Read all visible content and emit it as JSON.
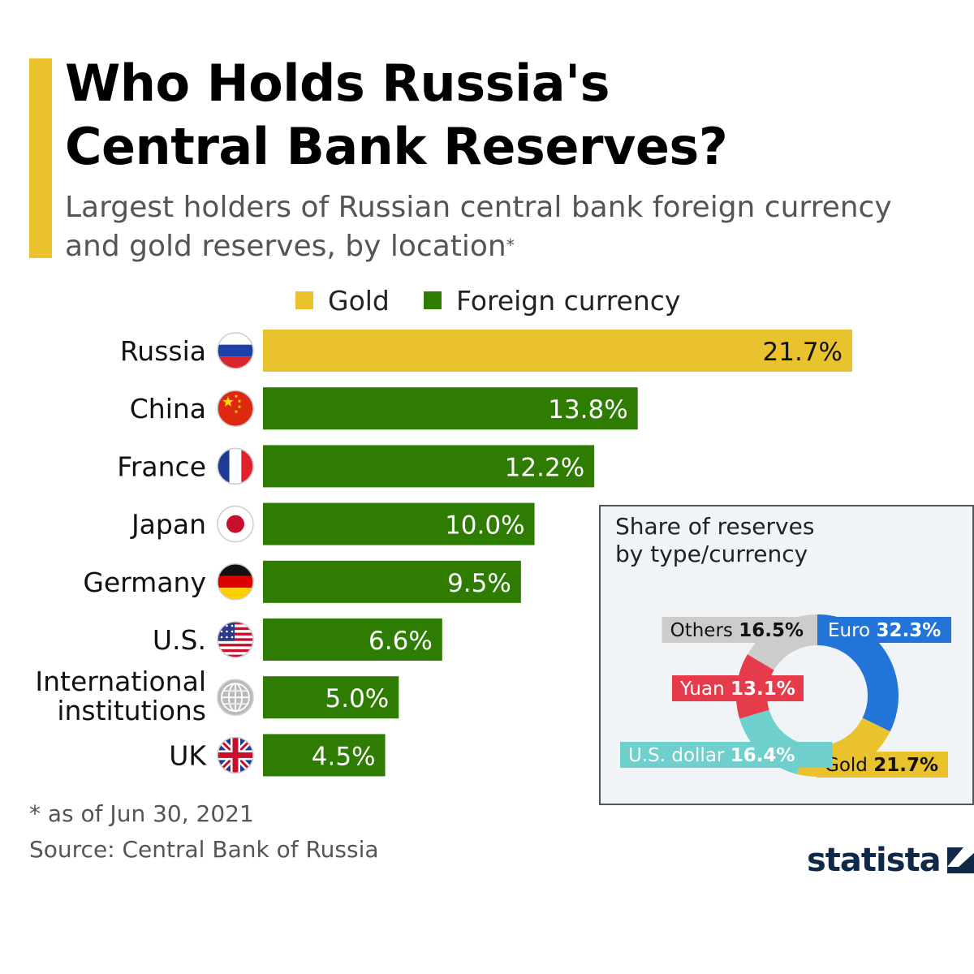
{
  "colors": {
    "gold": "#e9c22e",
    "foreign_currency": "#2e7d02",
    "accent": "#e9c22e",
    "euro": "#2374d8",
    "gold_slice": "#e9c22e",
    "us_dollar": "#6ecfcd",
    "yuan": "#e63b4a",
    "others": "#cccccc",
    "brand": "#0f2a48"
  },
  "header": {
    "title_line1": "Who Holds Russia's",
    "title_line2": "Central Bank Reserves?",
    "subtitle_line1": "Largest holders of Russian central bank foreign currency",
    "subtitle_line2": "and gold reserves, by location",
    "subtitle_mark": "*"
  },
  "chart_data": [
    {
      "type": "bar",
      "orientation": "horizontal",
      "categories": [
        "Russia",
        "China",
        "France",
        "Japan",
        "Germany",
        "U.S.",
        "International institutions",
        "UK"
      ],
      "category_lines": [
        [
          "Russia"
        ],
        [
          "China"
        ],
        [
          "France"
        ],
        [
          "Japan"
        ],
        [
          "Germany"
        ],
        [
          "U.S."
        ],
        [
          "International",
          "institutions"
        ],
        [
          "UK"
        ]
      ],
      "flags": [
        "russia-flag-icon",
        "china-flag-icon",
        "france-flag-icon",
        "japan-flag-icon",
        "germany-flag-icon",
        "us-flag-icon",
        "globe-icon",
        "uk-flag-icon"
      ],
      "values": [
        21.7,
        13.8,
        12.2,
        10.0,
        9.5,
        6.6,
        5.0,
        4.5
      ],
      "value_labels": [
        "21.7%",
        "13.8%",
        "12.2%",
        "10.0%",
        "9.5%",
        "6.6%",
        "5.0%",
        "4.5%"
      ],
      "series_type": [
        "Gold",
        "Foreign currency",
        "Foreign currency",
        "Foreign currency",
        "Foreign currency",
        "Foreign currency",
        "Foreign currency",
        "Foreign currency"
      ],
      "legend": [
        "Gold",
        "Foreign currency"
      ],
      "legend_placement": "top",
      "xlim": [
        0,
        22
      ]
    },
    {
      "type": "pie",
      "title_line1": "Share of reserves",
      "title_line2": "by type/currency",
      "slices": [
        {
          "name": "Euro",
          "value": 32.3,
          "label": "32.3%"
        },
        {
          "name": "Gold",
          "value": 21.7,
          "label": "21.7%"
        },
        {
          "name": "U.S. dollar",
          "value": 16.4,
          "label": "16.4%"
        },
        {
          "name": "Yuan",
          "value": 13.1,
          "label": "13.1%"
        },
        {
          "name": "Others",
          "value": 16.5,
          "label": "16.5%"
        }
      ]
    }
  ],
  "footer": {
    "footnote": "* as of Jun 30, 2021",
    "source": "Source: Central Bank of Russia",
    "brand": "statista"
  }
}
